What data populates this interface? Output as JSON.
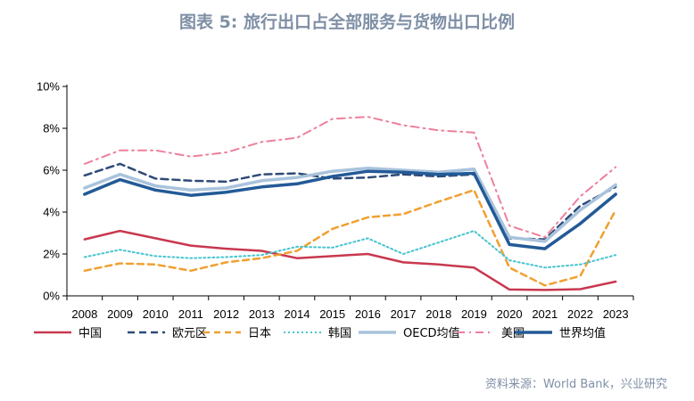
{
  "chart_data": {
    "type": "line",
    "title": "图表 5:  旅行出口占全部服务与货物出口比例",
    "source": "资料来源：World Bank，兴业研究",
    "x": [
      "2008",
      "2009",
      "2010",
      "2011",
      "2012",
      "2013",
      "2014",
      "2015",
      "2016",
      "2017",
      "2018",
      "2019",
      "2020",
      "2021",
      "2022",
      "2023"
    ],
    "yticks": [
      "0%",
      "2%",
      "4%",
      "6%",
      "8%",
      "10%"
    ],
    "ylim": [
      0,
      10
    ],
    "unit": "%",
    "legend_position": "bottom",
    "series": [
      {
        "name": "中国",
        "color": "#c8384f",
        "dash": "solid",
        "width": 2.5,
        "values": [
          2.7,
          3.1,
          2.75,
          2.4,
          2.25,
          2.15,
          1.8,
          1.9,
          2.0,
          1.6,
          1.5,
          1.35,
          0.3,
          0.28,
          0.32,
          0.68
        ]
      },
      {
        "name": "欧元区",
        "color": "#2f4a78",
        "dash": "8,5",
        "width": 2.5,
        "values": [
          5.75,
          6.3,
          5.6,
          5.5,
          5.45,
          5.8,
          5.85,
          5.6,
          5.65,
          5.8,
          5.7,
          5.8,
          2.75,
          2.7,
          4.3,
          5.2
        ]
      },
      {
        "name": "日本",
        "color": "#f0a030",
        "dash": "7,5",
        "width": 2.5,
        "values": [
          1.2,
          1.55,
          1.5,
          1.2,
          1.6,
          1.8,
          2.15,
          3.2,
          3.75,
          3.9,
          4.5,
          5.05,
          1.35,
          0.5,
          0.95,
          4.1
        ]
      },
      {
        "name": "韩国",
        "color": "#48c4cf",
        "dash": "2,3",
        "width": 2,
        "values": [
          1.85,
          2.2,
          1.9,
          1.8,
          1.85,
          1.95,
          2.35,
          2.3,
          2.75,
          2.0,
          2.55,
          3.1,
          1.7,
          1.35,
          1.5,
          1.95
        ]
      },
      {
        "name": "OECD均值",
        "color": "#a9c3dc",
        "dash": "solid",
        "width": 3.5,
        "values": [
          5.15,
          5.8,
          5.25,
          5.05,
          5.15,
          5.5,
          5.65,
          5.95,
          6.1,
          6.0,
          5.9,
          6.05,
          2.8,
          2.6,
          4.1,
          5.3
        ]
      },
      {
        "name": "美国",
        "color": "#ee7f9c",
        "dash": "9,5,2,5",
        "width": 2,
        "values": [
          6.3,
          6.95,
          6.95,
          6.65,
          6.85,
          7.35,
          7.55,
          8.45,
          8.55,
          8.15,
          7.9,
          7.8,
          3.35,
          2.8,
          4.75,
          6.15
        ]
      },
      {
        "name": "世界均值",
        "color": "#235a97",
        "dash": "solid",
        "width": 3.5,
        "values": [
          4.85,
          5.55,
          5.05,
          4.8,
          4.95,
          5.2,
          5.35,
          5.7,
          5.95,
          5.9,
          5.8,
          5.85,
          2.45,
          2.25,
          3.45,
          4.85
        ]
      }
    ]
  }
}
